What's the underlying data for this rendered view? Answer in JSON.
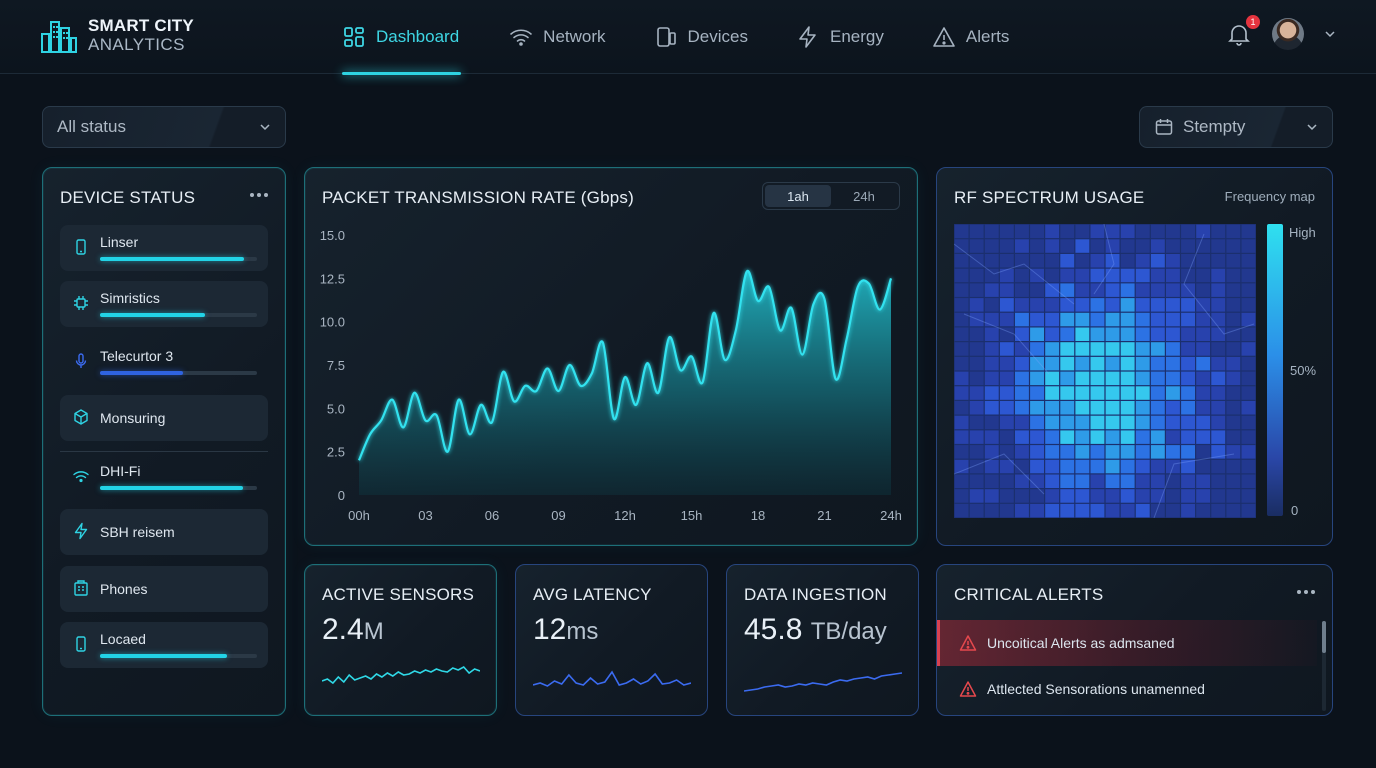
{
  "brand": {
    "line1": "SMART CITY",
    "line2": "ANALYTICS"
  },
  "nav": [
    {
      "label": "Dashboard",
      "icon": "dashboard-icon",
      "active": true
    },
    {
      "label": "Network",
      "icon": "wifi-icon"
    },
    {
      "label": "Devices",
      "icon": "devices-icon"
    },
    {
      "label": "Energy",
      "icon": "lightning-icon"
    },
    {
      "label": "Alerts",
      "icon": "warning-icon"
    }
  ],
  "notifications": {
    "count": "1"
  },
  "filters": {
    "status": "All status",
    "date": "Stempty"
  },
  "device_status": {
    "title": "DEVICE STATUS",
    "items": [
      {
        "label": "Linser",
        "icon": "phone-icon",
        "progress": 0.92,
        "color": "#22d3e6"
      },
      {
        "label": "Simristics",
        "icon": "chip-icon",
        "progress": 0.67,
        "color": "#22d3e6"
      },
      {
        "label": "Telecurtor 3",
        "icon": "microphone-icon",
        "progress": 0.53,
        "color": "#2f63e0"
      },
      {
        "label": "Monsuring",
        "icon": "cube-icon"
      },
      {
        "label": "DHI-Fi",
        "icon": "wifi-icon",
        "progress": 0.91,
        "color": "#22d3e6"
      },
      {
        "label": "SBH reisem",
        "icon": "lightning-icon"
      },
      {
        "label": "Phones",
        "icon": "building-icon"
      },
      {
        "label": "Locaed",
        "icon": "phone-icon",
        "progress": 0.81,
        "color": "#22d3e6"
      }
    ]
  },
  "packet_chart": {
    "title": "PACKET TRANSMISSION RATE (Gbps)",
    "tabs": [
      "1ah",
      "24h"
    ],
    "active_tab": "1ah"
  },
  "chart_data": {
    "type": "area",
    "x_tick_labels": [
      "00h",
      "03",
      "06",
      "09",
      "12h",
      "15h",
      "18",
      "21",
      "24h"
    ],
    "y_tick_labels": [
      "15.0",
      "12.5",
      "10.0",
      "7.5",
      "5.0",
      "2.5",
      "0"
    ],
    "ylim": [
      0,
      15
    ],
    "xlim": [
      0,
      24
    ],
    "grid": false,
    "x": [
      0,
      0.5,
      1,
      1.5,
      2,
      2.5,
      3,
      3.5,
      4,
      4.5,
      5,
      5.5,
      6,
      6.5,
      7,
      7.5,
      8,
      8.5,
      9,
      9.5,
      10,
      10.5,
      11,
      11.5,
      12,
      12.5,
      13,
      13.5,
      14,
      14.5,
      15,
      15.5,
      16,
      16.5,
      17,
      17.5,
      18,
      18.5,
      19,
      19.5,
      20,
      20.5,
      21,
      21.5,
      22,
      22.5,
      23,
      23.5,
      24
    ],
    "y": [
      2.0,
      3.5,
      4.3,
      5.5,
      3.9,
      5.9,
      4.3,
      4.6,
      2.5,
      5.5,
      3.5,
      5.2,
      4.2,
      7.1,
      5.4,
      6.3,
      6.0,
      7.3,
      6.0,
      7.5,
      6.3,
      7.0,
      8.8,
      4.4,
      6.8,
      5.2,
      7.6,
      5.9,
      9.1,
      7.2,
      8.0,
      6.5,
      10.5,
      7.8,
      9.5,
      12.9,
      11.2,
      12.0,
      9.5,
      10.8,
      8.1,
      11.0,
      11.3,
      6.7,
      9.0,
      12.0,
      12.2,
      10.7,
      12.5
    ]
  },
  "rf_spectrum": {
    "title": "RF SPECTRUM USAGE",
    "subtitle": "Frequency map",
    "legend": {
      "high": "High",
      "mid": "50%",
      "low": "0"
    }
  },
  "kpis": [
    {
      "title": "ACTIVE SENSORS",
      "value": "2.4",
      "unit": "M",
      "color": "#2fd8e6"
    },
    {
      "title": "AVG LATENCY",
      "value": "12",
      "unit": "ms",
      "color": "#3b6bf0"
    },
    {
      "title": "DATA INGESTION",
      "value": "45.8",
      "unit": "TB/day",
      "color": "#3b6bf0"
    }
  ],
  "critical_alerts": {
    "title": "CRITICAL ALERTS",
    "items": [
      {
        "text": "Uncoitical Alerts as admsaned",
        "icon": "warning-icon"
      },
      {
        "text": "Attlected Sensorations unamenned",
        "icon": "warning-icon"
      }
    ]
  }
}
